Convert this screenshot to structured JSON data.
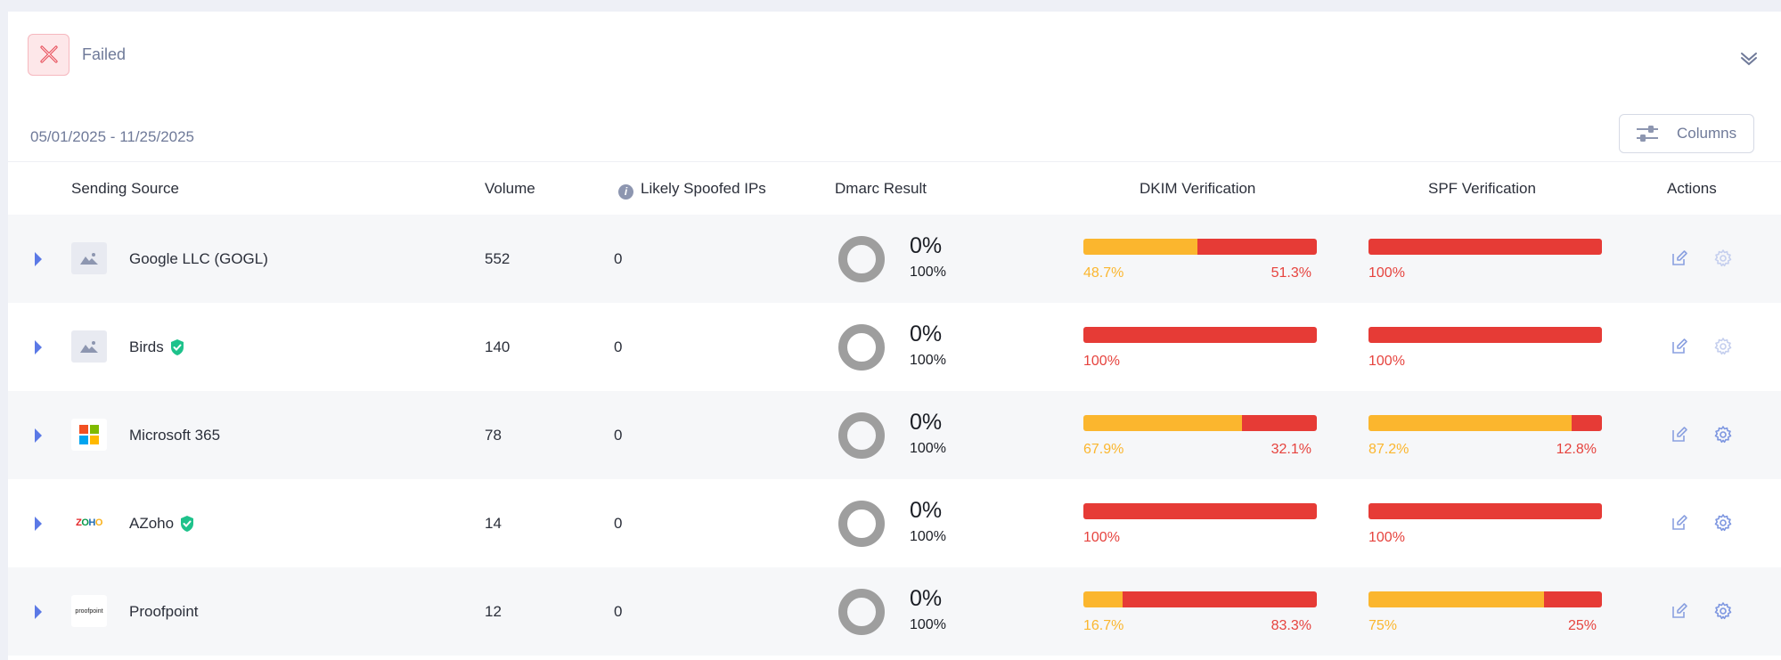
{
  "header": {
    "status_label": "Failed",
    "icon": "close-icon",
    "collapse_icon": "chevron-down-icon"
  },
  "date_range": "05/01/2025 - 11/25/2025",
  "columns_button": {
    "label": "Columns",
    "icon": "sliders-icon"
  },
  "columns": {
    "sending_source": "Sending Source",
    "volume": "Volume",
    "spoofed": "Likely Spoofed IPs",
    "dmarc": "Dmarc Result",
    "dkim": "DKIM Verification",
    "spf": "SPF Verification",
    "actions": "Actions"
  },
  "colors": {
    "pass_partial": "#fbb62e",
    "fail": "#e63b36",
    "accent": "#5b79e6",
    "verified": "#1ec28b",
    "donut": "#9e9e9e"
  },
  "rows": [
    {
      "name": "Google LLC (GOGL)",
      "logo": "image-placeholder-icon",
      "verified": false,
      "volume": "552",
      "spoofed": "0",
      "dmarc_pct": "0%",
      "dmarc_sub": "100%",
      "dkim": {
        "pass": 48.7,
        "fail": 51.3,
        "pass_label": "48.7%",
        "fail_label": "51.3%"
      },
      "spf": {
        "pass": 0,
        "fail": 100,
        "pass_label": "",
        "fail_label": "100%"
      }
    },
    {
      "name": "Birds",
      "logo": "image-placeholder-icon",
      "verified": true,
      "volume": "140",
      "spoofed": "0",
      "dmarc_pct": "0%",
      "dmarc_sub": "100%",
      "dkim": {
        "pass": 0,
        "fail": 100,
        "pass_label": "",
        "fail_label": "100%"
      },
      "spf": {
        "pass": 0,
        "fail": 100,
        "pass_label": "",
        "fail_label": "100%"
      }
    },
    {
      "name": "Microsoft 365",
      "logo": "microsoft-logo-icon",
      "verified": false,
      "volume": "78",
      "spoofed": "0",
      "dmarc_pct": "0%",
      "dmarc_sub": "100%",
      "dkim": {
        "pass": 67.9,
        "fail": 32.1,
        "pass_label": "67.9%",
        "fail_label": "32.1%"
      },
      "spf": {
        "pass": 87.2,
        "fail": 12.8,
        "pass_label": "87.2%",
        "fail_label": "12.8%"
      }
    },
    {
      "name": "AZoho",
      "logo": "zoho-logo-icon",
      "logo_text": "ZOHO",
      "verified": true,
      "volume": "14",
      "spoofed": "0",
      "dmarc_pct": "0%",
      "dmarc_sub": "100%",
      "dkim": {
        "pass": 0,
        "fail": 100,
        "pass_label": "",
        "fail_label": "100%"
      },
      "spf": {
        "pass": 0,
        "fail": 100,
        "pass_label": "",
        "fail_label": "100%"
      }
    },
    {
      "name": "Proofpoint",
      "logo": "proofpoint-logo-icon",
      "logo_text": "proofpoint",
      "verified": false,
      "volume": "12",
      "spoofed": "0",
      "dmarc_pct": "0%",
      "dmarc_sub": "100%",
      "dkim": {
        "pass": 16.7,
        "fail": 83.3,
        "pass_label": "16.7%",
        "fail_label": "83.3%"
      },
      "spf": {
        "pass": 75,
        "fail": 25,
        "pass_label": "75%",
        "fail_label": "25%"
      }
    }
  ]
}
